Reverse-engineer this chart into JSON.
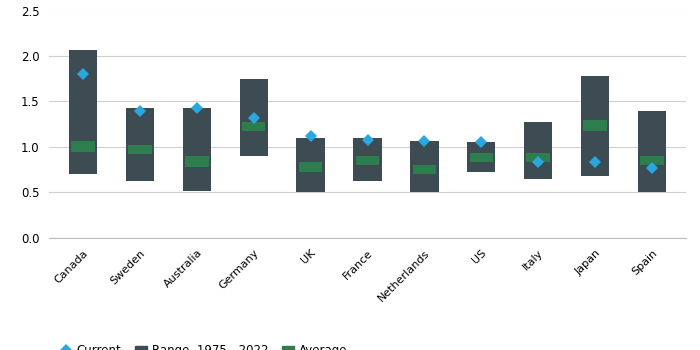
{
  "countries": [
    "Canada",
    "Sweden",
    "Australia",
    "Germany",
    "UK",
    "France",
    "Netherlands",
    "US",
    "Italy",
    "Japan",
    "Spain"
  ],
  "range_low": [
    0.7,
    0.63,
    0.52,
    0.9,
    0.5,
    0.63,
    0.5,
    0.73,
    0.65,
    0.68,
    0.5
  ],
  "range_high": [
    2.07,
    1.43,
    1.43,
    1.75,
    1.1,
    1.1,
    1.07,
    1.05,
    1.28,
    1.78,
    1.4
  ],
  "avg_low": [
    0.95,
    0.92,
    0.78,
    1.18,
    0.73,
    0.8,
    0.7,
    0.83,
    0.83,
    1.18,
    0.8
  ],
  "avg_high": [
    1.07,
    1.02,
    0.9,
    1.28,
    0.83,
    0.9,
    0.8,
    0.93,
    0.93,
    1.3,
    0.9
  ],
  "current": [
    1.8,
    1.4,
    1.43,
    1.32,
    1.12,
    1.08,
    1.07,
    1.05,
    0.83,
    0.83,
    0.77
  ],
  "bar_color": "#3d4b52",
  "avg_color": "#2e7d4f",
  "current_color": "#29a8e0",
  "background_color": "#ffffff",
  "ylim": [
    0.0,
    2.5
  ],
  "yticks": [
    0.0,
    0.5,
    1.0,
    1.5,
    2.0,
    2.5
  ]
}
